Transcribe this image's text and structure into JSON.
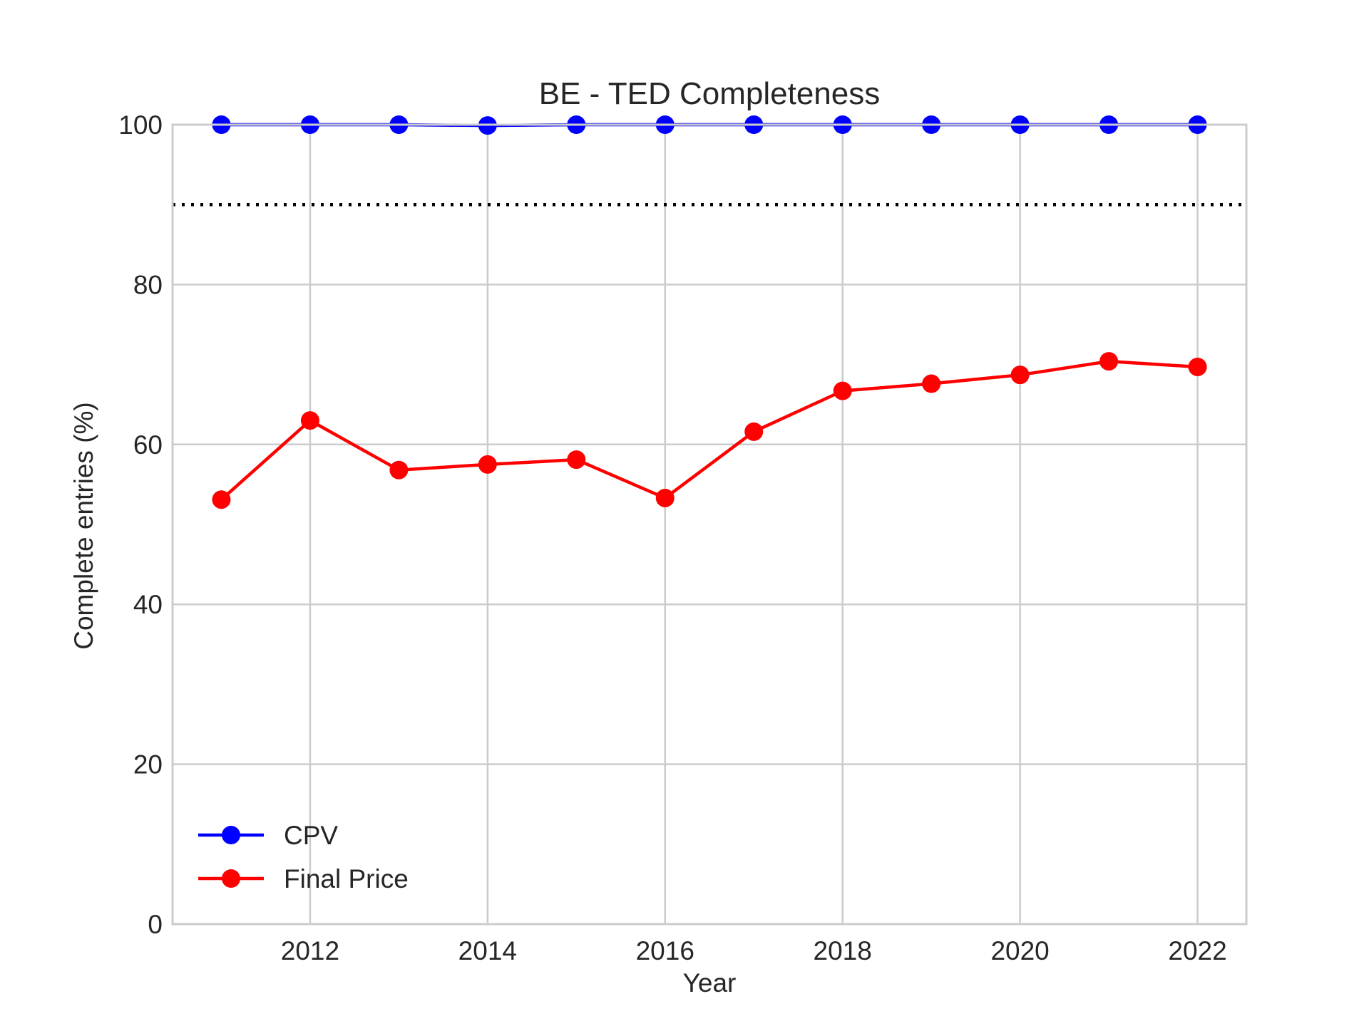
{
  "chart_data": {
    "type": "line",
    "title": "BE - TED Completeness",
    "xlabel": "Year",
    "ylabel": "Complete entries (%)",
    "x": [
      2011,
      2012,
      2013,
      2014,
      2015,
      2016,
      2017,
      2018,
      2019,
      2020,
      2021,
      2022
    ],
    "xlim": [
      2010.45,
      2022.55
    ],
    "ylim": [
      0,
      100
    ],
    "xticks": [
      2012,
      2014,
      2016,
      2018,
      2020,
      2022
    ],
    "yticks": [
      0,
      20,
      40,
      60,
      80,
      100
    ],
    "grid": true,
    "legend_position": "lower-left",
    "reference_line": {
      "y": 90,
      "style": "dotted",
      "color": "#000000"
    },
    "series": [
      {
        "name": "CPV",
        "color": "#0000ff",
        "values": [
          100,
          100,
          100,
          99.9,
          100,
          100,
          100,
          100,
          100,
          100,
          100,
          100
        ]
      },
      {
        "name": "Final Price",
        "color": "#ff0000",
        "values": [
          53.1,
          63.0,
          56.8,
          57.5,
          58.1,
          53.3,
          61.6,
          66.7,
          67.6,
          68.7,
          70.4,
          69.7
        ]
      }
    ]
  }
}
